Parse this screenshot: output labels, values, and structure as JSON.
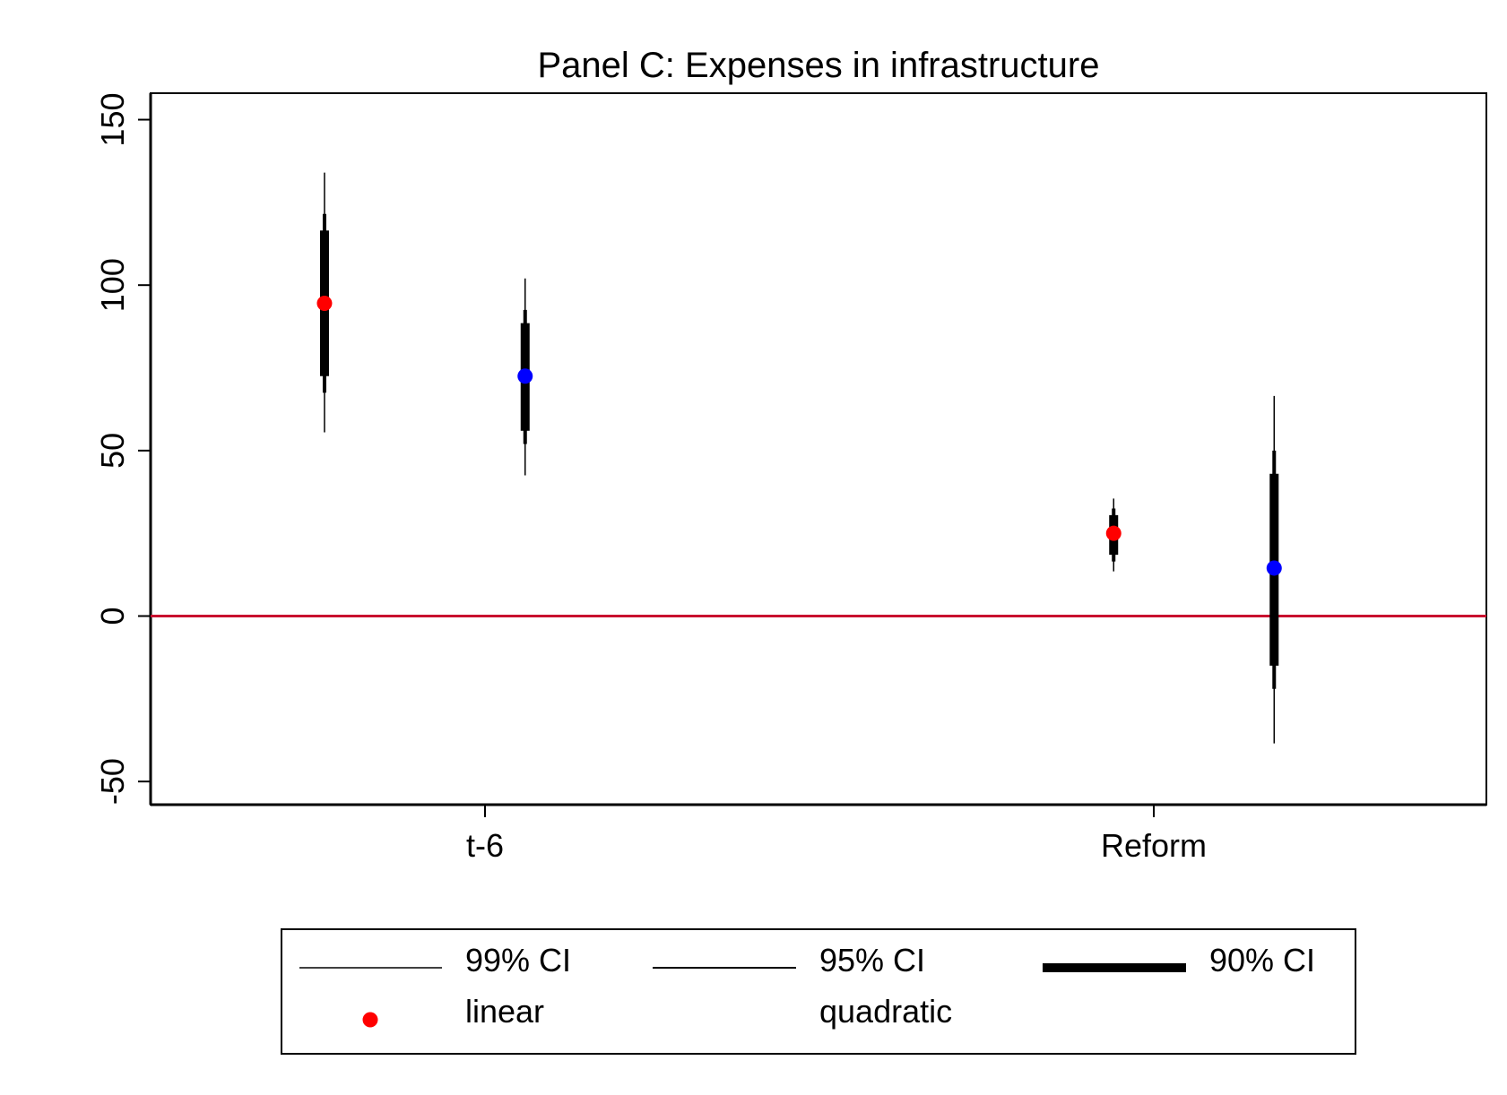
{
  "chart_data": {
    "type": "scatter",
    "title": "Panel C: Expenses in infrastructure",
    "xlabel": "",
    "ylabel": "",
    "ylim": [
      -57,
      158
    ],
    "yticks": [
      -50,
      0,
      50,
      100,
      150
    ],
    "categories": [
      "t-6",
      "Reform"
    ],
    "reference_line": {
      "y": 0,
      "color": "#c8102e"
    },
    "grid": false,
    "legend_position": "bottom",
    "series": [
      {
        "name": "linear",
        "color": "#ff0000",
        "points": [
          {
            "category": "t-6",
            "offset": -0.4,
            "estimate": 94.5,
            "ci90": [
              72.5,
              116.5
            ],
            "ci95": [
              67.5,
              121.5
            ],
            "ci99": [
              55.5,
              134
            ]
          },
          {
            "category": "Reform",
            "offset": -0.1,
            "estimate": 25,
            "ci90": [
              18.5,
              30.5
            ],
            "ci95": [
              16.5,
              32.5
            ],
            "ci99": [
              13.5,
              35.5
            ]
          }
        ]
      },
      {
        "name": "quadratic",
        "color": "#0000ff",
        "points": [
          {
            "category": "t-6",
            "offset": 0.1,
            "estimate": 72.5,
            "ci90": [
              56,
              88.5
            ],
            "ci95": [
              52,
              92.5
            ],
            "ci99": [
              42.5,
              102
            ]
          },
          {
            "category": "Reform",
            "offset": 0.3,
            "estimate": 14.5,
            "ci90": [
              -15,
              43
            ],
            "ci95": [
              -22,
              50
            ],
            "ci99": [
              -38.5,
              66.5
            ]
          }
        ]
      }
    ],
    "legend": {
      "items": [
        {
          "label": "99% CI",
          "symbol": "thin-line"
        },
        {
          "label": "95% CI",
          "symbol": "medium-line"
        },
        {
          "label": "90% CI",
          "symbol": "thick-line"
        },
        {
          "label": "linear",
          "symbol": "red-dot"
        },
        {
          "label": "quadratic",
          "symbol": "none"
        }
      ]
    }
  }
}
